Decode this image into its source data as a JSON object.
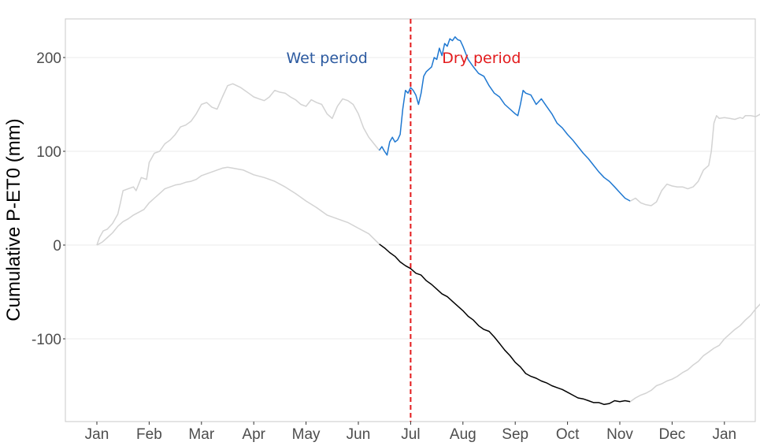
{
  "chart_data": {
    "type": "line",
    "title": "",
    "xlabel": "",
    "ylabel": "Cumulative P-ET0 (mm)",
    "x_ticks": [
      "Jan",
      "Feb",
      "Mar",
      "Apr",
      "May",
      "Jun",
      "Jul",
      "Aug",
      "Sep",
      "Oct",
      "Nov",
      "Dec",
      "Jan"
    ],
    "x_unit": "month",
    "xlim": [
      -0.2,
      12.4
    ],
    "y_ticks": [
      -100,
      0,
      100,
      200
    ],
    "ylim": [
      -187,
      242
    ],
    "grid": "horizontal",
    "vline": {
      "x": 6.0,
      "color": "#e31a1c",
      "style": "dashed"
    },
    "annotations": [
      {
        "text": "Wet period",
        "color": "#2c5aa0",
        "x": 4.4,
        "y": 200
      },
      {
        "text": "Dry period",
        "color": "#e31a1c",
        "x": 6.6,
        "y": 200
      }
    ],
    "series": [
      {
        "color": "#d3d3d3",
        "points": [
          [
            0,
            0
          ],
          [
            0.05,
            8
          ],
          [
            0.12,
            15
          ],
          [
            0.2,
            17
          ],
          [
            0.3,
            23
          ],
          [
            0.4,
            33
          ],
          [
            0.45,
            45
          ],
          [
            0.5,
            58
          ],
          [
            0.6,
            60
          ],
          [
            0.7,
            62
          ],
          [
            0.75,
            58
          ],
          [
            0.85,
            72
          ],
          [
            0.95,
            70
          ],
          [
            1.0,
            88
          ],
          [
            1.1,
            98
          ],
          [
            1.2,
            100
          ],
          [
            1.3,
            108
          ],
          [
            1.4,
            112
          ],
          [
            1.5,
            118
          ],
          [
            1.6,
            126
          ],
          [
            1.7,
            128
          ],
          [
            1.8,
            132
          ],
          [
            1.9,
            140
          ],
          [
            2.0,
            150
          ],
          [
            2.1,
            152
          ],
          [
            2.2,
            147
          ],
          [
            2.3,
            145
          ],
          [
            2.4,
            158
          ],
          [
            2.5,
            170
          ],
          [
            2.6,
            172
          ],
          [
            2.75,
            168
          ],
          [
            2.9,
            162
          ],
          [
            3.0,
            158
          ],
          [
            3.1,
            156
          ],
          [
            3.2,
            154
          ],
          [
            3.3,
            158
          ],
          [
            3.4,
            165
          ],
          [
            3.5,
            163
          ],
          [
            3.6,
            162
          ],
          [
            3.7,
            158
          ],
          [
            3.8,
            155
          ],
          [
            3.9,
            150
          ],
          [
            4.0,
            148
          ],
          [
            4.1,
            155
          ],
          [
            4.2,
            152
          ],
          [
            4.3,
            150
          ],
          [
            4.4,
            140
          ],
          [
            4.5,
            135
          ],
          [
            4.6,
            148
          ],
          [
            4.7,
            156
          ],
          [
            4.8,
            154
          ],
          [
            4.9,
            150
          ],
          [
            5.0,
            140
          ],
          [
            5.1,
            125
          ],
          [
            5.2,
            115
          ],
          [
            5.3,
            108
          ],
          [
            5.4,
            101
          ]
        ]
      },
      {
        "color": "#1f78d1",
        "points": [
          [
            5.4,
            101
          ],
          [
            5.45,
            105
          ],
          [
            5.5,
            100
          ],
          [
            5.55,
            96
          ],
          [
            5.6,
            110
          ],
          [
            5.65,
            115
          ],
          [
            5.7,
            110
          ],
          [
            5.75,
            112
          ],
          [
            5.8,
            118
          ],
          [
            5.85,
            145
          ],
          [
            5.9,
            165
          ],
          [
            5.95,
            162
          ],
          [
            6.0,
            168
          ],
          [
            6.05,
            165
          ],
          [
            6.1,
            160
          ],
          [
            6.15,
            150
          ],
          [
            6.2,
            162
          ],
          [
            6.25,
            180
          ],
          [
            6.3,
            185
          ],
          [
            6.4,
            190
          ],
          [
            6.45,
            200
          ],
          [
            6.5,
            198
          ],
          [
            6.55,
            210
          ],
          [
            6.6,
            202
          ],
          [
            6.65,
            215
          ],
          [
            6.7,
            212
          ],
          [
            6.75,
            220
          ],
          [
            6.8,
            218
          ],
          [
            6.85,
            222
          ],
          [
            6.9,
            219
          ],
          [
            6.95,
            218
          ],
          [
            7.0,
            212
          ],
          [
            7.05,
            205
          ],
          [
            7.1,
            198
          ],
          [
            7.2,
            190
          ],
          [
            7.3,
            183
          ],
          [
            7.4,
            180
          ],
          [
            7.5,
            170
          ],
          [
            7.6,
            162
          ],
          [
            7.7,
            158
          ],
          [
            7.8,
            150
          ],
          [
            7.9,
            145
          ],
          [
            8.0,
            140
          ],
          [
            8.05,
            138
          ],
          [
            8.1,
            150
          ],
          [
            8.15,
            165
          ],
          [
            8.2,
            162
          ],
          [
            8.3,
            160
          ],
          [
            8.4,
            150
          ],
          [
            8.5,
            156
          ],
          [
            8.6,
            148
          ],
          [
            8.7,
            140
          ],
          [
            8.8,
            130
          ],
          [
            8.9,
            125
          ],
          [
            9.0,
            118
          ],
          [
            9.1,
            112
          ],
          [
            9.2,
            105
          ],
          [
            9.3,
            98
          ],
          [
            9.4,
            92
          ],
          [
            9.5,
            85
          ],
          [
            9.6,
            78
          ],
          [
            9.7,
            72
          ],
          [
            9.8,
            68
          ],
          [
            9.9,
            62
          ],
          [
            10.0,
            56
          ],
          [
            10.1,
            50
          ],
          [
            10.2,
            47
          ]
        ]
      },
      {
        "color": "#d3d3d3",
        "points": [
          [
            10.2,
            47
          ],
          [
            10.3,
            50
          ],
          [
            10.4,
            45
          ],
          [
            10.5,
            43
          ],
          [
            10.6,
            42
          ],
          [
            10.7,
            46
          ],
          [
            10.8,
            58
          ],
          [
            10.9,
            65
          ],
          [
            11.0,
            63
          ],
          [
            11.1,
            62
          ],
          [
            11.2,
            62
          ],
          [
            11.3,
            60
          ],
          [
            11.4,
            62
          ],
          [
            11.5,
            68
          ],
          [
            11.6,
            80
          ],
          [
            11.7,
            85
          ],
          [
            11.75,
            100
          ],
          [
            11.8,
            130
          ],
          [
            11.85,
            138
          ],
          [
            11.9,
            135
          ],
          [
            12.0,
            136
          ],
          [
            12.1,
            135
          ],
          [
            12.2,
            134
          ],
          [
            12.3,
            136
          ],
          [
            12.35,
            135
          ],
          [
            12.4,
            138
          ],
          [
            12.5,
            138
          ],
          [
            12.6,
            137
          ],
          [
            12.7,
            140
          ],
          [
            12.8,
            142
          ],
          [
            13.0,
            142
          ]
        ]
      },
      {
        "color": "#d3d3d3",
        "points": [
          [
            0,
            0
          ],
          [
            0.1,
            3
          ],
          [
            0.2,
            8
          ],
          [
            0.3,
            13
          ],
          [
            0.4,
            20
          ],
          [
            0.5,
            25
          ],
          [
            0.6,
            28
          ],
          [
            0.7,
            32
          ],
          [
            0.8,
            35
          ],
          [
            0.9,
            38
          ],
          [
            1.0,
            45
          ],
          [
            1.1,
            50
          ],
          [
            1.2,
            55
          ],
          [
            1.3,
            60
          ],
          [
            1.4,
            62
          ],
          [
            1.5,
            64
          ],
          [
            1.6,
            65
          ],
          [
            1.7,
            67
          ],
          [
            1.8,
            68
          ],
          [
            1.9,
            70
          ],
          [
            2.0,
            74
          ],
          [
            2.1,
            76
          ],
          [
            2.2,
            78
          ],
          [
            2.3,
            80
          ],
          [
            2.4,
            82
          ],
          [
            2.5,
            83
          ],
          [
            2.6,
            82
          ],
          [
            2.7,
            81
          ],
          [
            2.8,
            80
          ],
          [
            3.0,
            75
          ],
          [
            3.2,
            72
          ],
          [
            3.4,
            68
          ],
          [
            3.6,
            62
          ],
          [
            3.8,
            55
          ],
          [
            4.0,
            47
          ],
          [
            4.2,
            40
          ],
          [
            4.4,
            32
          ],
          [
            4.6,
            28
          ],
          [
            4.8,
            24
          ],
          [
            5.0,
            18
          ],
          [
            5.2,
            12
          ],
          [
            5.4,
            1
          ]
        ]
      },
      {
        "color": "#000000",
        "points": [
          [
            5.4,
            1
          ],
          [
            5.5,
            -3
          ],
          [
            5.6,
            -8
          ],
          [
            5.7,
            -12
          ],
          [
            5.8,
            -18
          ],
          [
            5.9,
            -22
          ],
          [
            6.0,
            -25
          ],
          [
            6.1,
            -30
          ],
          [
            6.2,
            -32
          ],
          [
            6.3,
            -38
          ],
          [
            6.4,
            -42
          ],
          [
            6.5,
            -47
          ],
          [
            6.6,
            -52
          ],
          [
            6.7,
            -55
          ],
          [
            6.8,
            -60
          ],
          [
            6.9,
            -65
          ],
          [
            7.0,
            -70
          ],
          [
            7.1,
            -76
          ],
          [
            7.2,
            -80
          ],
          [
            7.3,
            -86
          ],
          [
            7.4,
            -90
          ],
          [
            7.5,
            -92
          ],
          [
            7.6,
            -98
          ],
          [
            7.7,
            -105
          ],
          [
            7.8,
            -112
          ],
          [
            7.9,
            -118
          ],
          [
            8.0,
            -125
          ],
          [
            8.1,
            -130
          ],
          [
            8.2,
            -137
          ],
          [
            8.3,
            -140
          ],
          [
            8.4,
            -142
          ],
          [
            8.5,
            -145
          ],
          [
            8.6,
            -147
          ],
          [
            8.7,
            -150
          ],
          [
            8.8,
            -152
          ],
          [
            8.9,
            -154
          ],
          [
            9.0,
            -157
          ],
          [
            9.1,
            -160
          ],
          [
            9.2,
            -163
          ],
          [
            9.3,
            -164
          ],
          [
            9.4,
            -166
          ],
          [
            9.5,
            -168
          ],
          [
            9.6,
            -168
          ],
          [
            9.7,
            -170
          ],
          [
            9.8,
            -169
          ],
          [
            9.9,
            -166
          ],
          [
            10.0,
            -167
          ],
          [
            10.1,
            -166
          ],
          [
            10.2,
            -167
          ]
        ]
      },
      {
        "color": "#d3d3d3",
        "points": [
          [
            10.2,
            -167
          ],
          [
            10.3,
            -163
          ],
          [
            10.4,
            -160
          ],
          [
            10.5,
            -158
          ],
          [
            10.6,
            -155
          ],
          [
            10.7,
            -150
          ],
          [
            10.8,
            -148
          ],
          [
            10.9,
            -145
          ],
          [
            11.0,
            -143
          ],
          [
            11.1,
            -140
          ],
          [
            11.2,
            -136
          ],
          [
            11.3,
            -133
          ],
          [
            11.4,
            -128
          ],
          [
            11.5,
            -124
          ],
          [
            11.6,
            -118
          ],
          [
            11.7,
            -114
          ],
          [
            11.8,
            -110
          ],
          [
            11.9,
            -107
          ],
          [
            12.0,
            -100
          ],
          [
            12.1,
            -95
          ],
          [
            12.2,
            -90
          ],
          [
            12.3,
            -86
          ],
          [
            12.4,
            -80
          ],
          [
            12.5,
            -75
          ],
          [
            12.6,
            -68
          ],
          [
            12.7,
            -62
          ],
          [
            12.8,
            -55
          ],
          [
            12.9,
            -47
          ],
          [
            13.0,
            -40
          ]
        ]
      }
    ]
  }
}
